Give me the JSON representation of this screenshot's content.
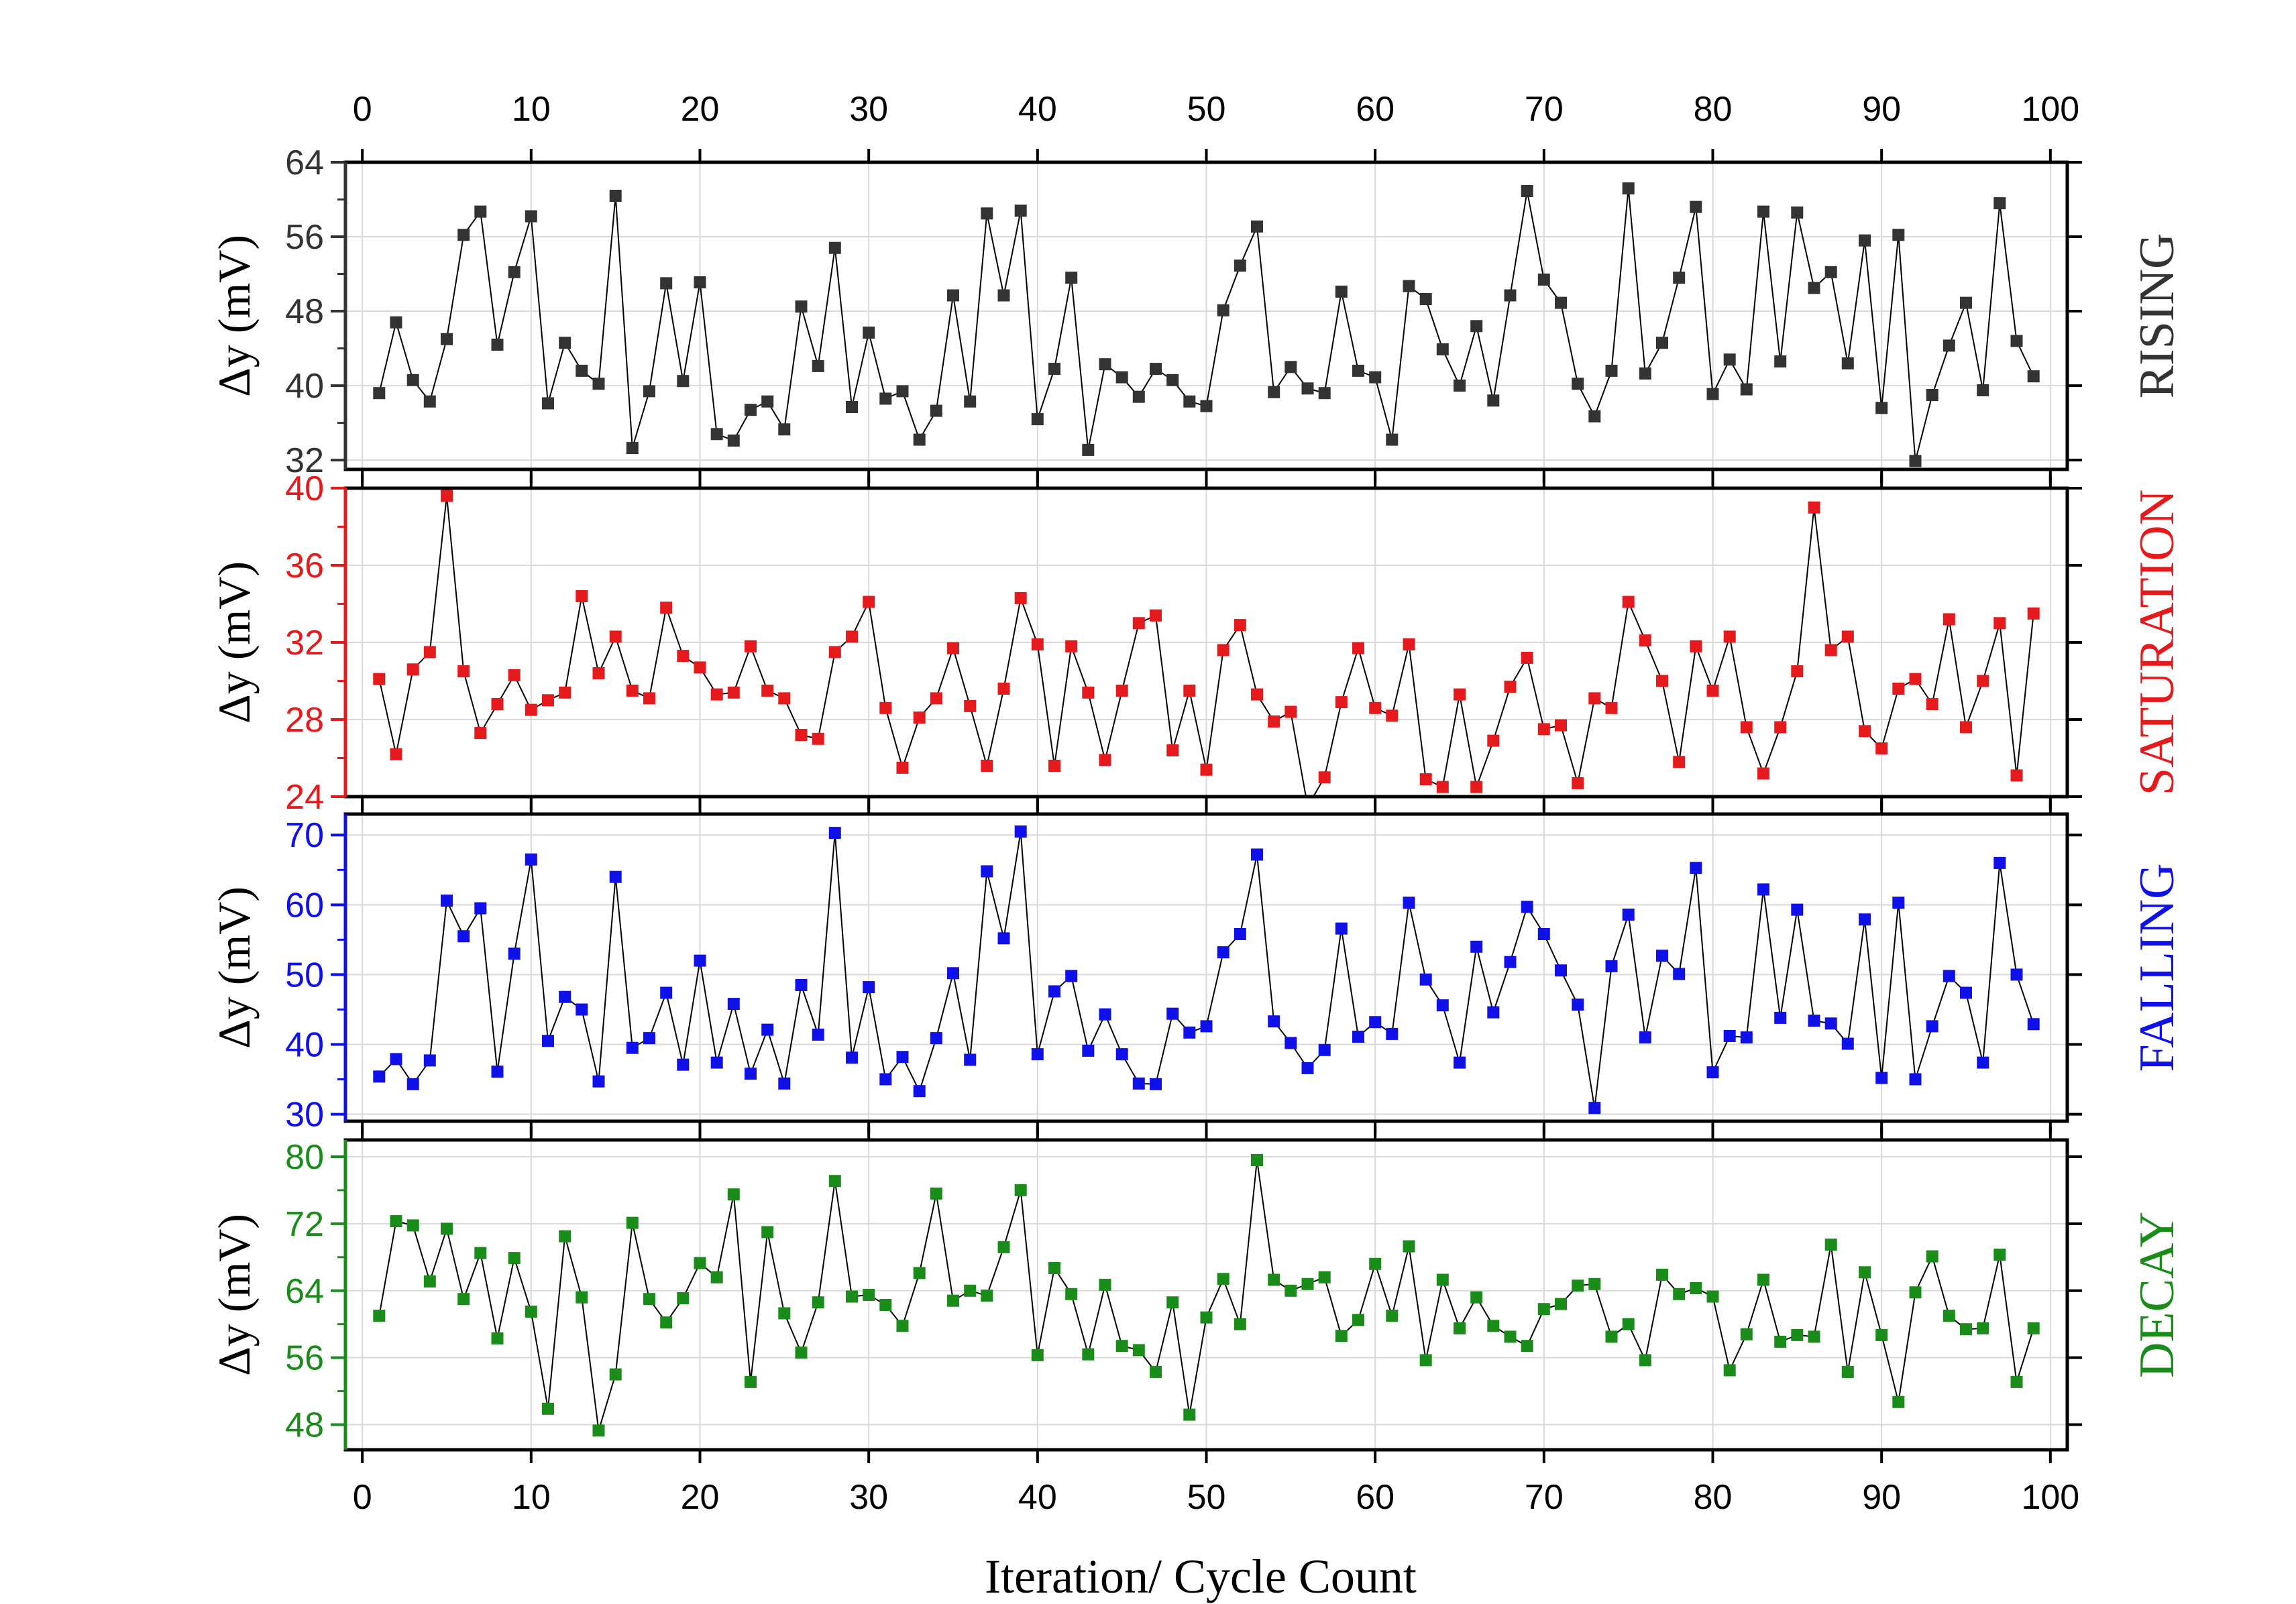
{
  "chart_data": {
    "type": "scatter",
    "xlabel": "Iteration/ Cycle Count",
    "x_ticks": [
      "0",
      "10",
      "20",
      "30",
      "40",
      "50",
      "60",
      "70",
      "80",
      "90",
      "100"
    ],
    "xlim": [
      -1,
      101
    ],
    "grid": true,
    "panels": [
      {
        "name": "RISING",
        "ylabel": "Δy (mV)",
        "color": "#333333",
        "ylim": [
          31,
          64
        ],
        "yticks": [
          32,
          40,
          48,
          56,
          64
        ],
        "y_tick_labels": [
          "32",
          "40",
          "48",
          "56",
          "64"
        ],
        "x": [
          1,
          2,
          3,
          4,
          5,
          6,
          7,
          8,
          9,
          10,
          11,
          12,
          13,
          14,
          15,
          16,
          17,
          18,
          19,
          20,
          21,
          22,
          23,
          24,
          25,
          26,
          27,
          28,
          29,
          30,
          31,
          32,
          33,
          34,
          35,
          36,
          37,
          38,
          39,
          40,
          41,
          42,
          43,
          44,
          45,
          46,
          47,
          48,
          49,
          50,
          51,
          52,
          53,
          54,
          55,
          56,
          57,
          58,
          59,
          60,
          61,
          62,
          63,
          64,
          65,
          66,
          67,
          68,
          69,
          70,
          71,
          72,
          73,
          74,
          75,
          76,
          77,
          78,
          79,
          80,
          81,
          82,
          83,
          84,
          85,
          86,
          87,
          88,
          89,
          90,
          91,
          92,
          93,
          94,
          95,
          96,
          97,
          98,
          99
        ],
        "values": [
          39.2,
          46.8,
          40.6,
          38.3,
          45.0,
          56.2,
          58.7,
          44.4,
          52.2,
          58.2,
          38.1,
          44.6,
          41.6,
          40.2,
          60.4,
          33.3,
          39.4,
          51.0,
          40.5,
          51.1,
          34.8,
          34.1,
          37.4,
          38.3,
          35.3,
          48.5,
          42.1,
          54.8,
          37.7,
          45.7,
          38.6,
          39.4,
          34.2,
          37.3,
          49.7,
          38.3,
          58.5,
          49.7,
          58.8,
          36.4,
          41.8,
          51.6,
          33.1,
          42.3,
          40.9,
          38.8,
          41.8,
          40.6,
          38.3,
          37.8,
          48.1,
          52.9,
          57.1,
          39.3,
          42.0,
          39.7,
          39.2,
          50.1,
          41.6,
          40.9,
          34.2,
          50.7,
          49.3,
          43.9,
          40.0,
          46.4,
          38.4,
          49.7,
          60.9,
          51.4,
          48.9,
          40.2,
          36.7,
          41.6,
          61.2,
          41.3,
          44.6,
          51.6,
          59.2,
          39.1,
          42.8,
          39.6,
          58.7,
          42.6,
          58.6,
          50.5,
          52.2,
          42.4,
          55.6,
          37.6,
          56.2,
          31.9,
          39.0,
          44.3,
          48.9,
          39.5,
          59.6,
          44.8,
          41.0
        ]
      },
      {
        "name": "SATURATION",
        "ylabel": "Δy (mV)",
        "color": "#e41a1c",
        "ylim": [
          24,
          40
        ],
        "yticks": [
          24,
          28,
          32,
          36,
          40
        ],
        "y_tick_labels": [
          "24",
          "28",
          "32",
          "36",
          "40"
        ],
        "x": [
          1,
          2,
          3,
          4,
          5,
          6,
          7,
          8,
          9,
          10,
          11,
          12,
          13,
          14,
          15,
          16,
          17,
          18,
          19,
          20,
          21,
          22,
          23,
          24,
          25,
          26,
          27,
          28,
          29,
          30,
          31,
          32,
          33,
          34,
          35,
          36,
          37,
          38,
          39,
          40,
          41,
          42,
          43,
          44,
          45,
          46,
          47,
          48,
          49,
          50,
          51,
          52,
          53,
          54,
          55,
          56,
          57,
          58,
          59,
          60,
          61,
          62,
          63,
          64,
          65,
          66,
          67,
          68,
          69,
          70,
          71,
          72,
          73,
          74,
          75,
          76,
          77,
          78,
          79,
          80,
          81,
          82,
          83,
          84,
          85,
          86,
          87,
          88,
          89,
          90,
          91,
          92,
          93,
          94,
          95,
          96,
          97,
          98,
          99
        ],
        "values": [
          30.1,
          26.2,
          30.6,
          31.5,
          39.6,
          30.5,
          27.3,
          28.8,
          30.3,
          28.5,
          29.0,
          29.4,
          34.4,
          30.4,
          32.3,
          29.5,
          29.1,
          33.8,
          31.3,
          30.7,
          29.3,
          29.4,
          31.8,
          29.5,
          29.1,
          27.2,
          27.0,
          31.5,
          32.3,
          34.1,
          28.6,
          25.5,
          28.1,
          29.1,
          31.7,
          28.7,
          25.6,
          29.6,
          34.3,
          31.9,
          25.6,
          31.8,
          29.4,
          25.9,
          29.5,
          33.0,
          33.4,
          26.4,
          29.5,
          25.4,
          31.6,
          32.9,
          29.3,
          27.9,
          28.4,
          23.5,
          25.0,
          28.9,
          31.7,
          28.6,
          28.2,
          31.9,
          24.9,
          24.5,
          29.3,
          24.5,
          26.9,
          29.7,
          31.2,
          27.5,
          27.7,
          24.7,
          29.1,
          28.6,
          34.1,
          32.1,
          30.0,
          25.8,
          31.8,
          29.5,
          32.3,
          27.6,
          25.2,
          27.6,
          30.5,
          39.0,
          31.6,
          32.3,
          27.4,
          26.5,
          29.6,
          30.1,
          28.8,
          33.2,
          27.6,
          30.0,
          33.0,
          25.1,
          33.5
        ]
      },
      {
        "name": "FALLING",
        "ylabel": "Δy (mV)",
        "color": "#1010e8",
        "ylim": [
          29,
          73
        ],
        "yticks": [
          30,
          40,
          50,
          60,
          70
        ],
        "y_tick_labels": [
          "30",
          "40",
          "50",
          "60",
          "70"
        ],
        "x": [
          1,
          2,
          3,
          4,
          5,
          6,
          7,
          8,
          9,
          10,
          11,
          12,
          13,
          14,
          15,
          16,
          17,
          18,
          19,
          20,
          21,
          22,
          23,
          24,
          25,
          26,
          27,
          28,
          29,
          30,
          31,
          32,
          33,
          34,
          35,
          36,
          37,
          38,
          39,
          40,
          41,
          42,
          43,
          44,
          45,
          46,
          47,
          48,
          49,
          50,
          51,
          52,
          53,
          54,
          55,
          56,
          57,
          58,
          59,
          60,
          61,
          62,
          63,
          64,
          65,
          66,
          67,
          68,
          69,
          70,
          71,
          72,
          73,
          74,
          75,
          76,
          77,
          78,
          79,
          80,
          81,
          82,
          83,
          84,
          85,
          86,
          87,
          88,
          89,
          90,
          91,
          92,
          93,
          94,
          95,
          96,
          97,
          98,
          99
        ],
        "values": [
          35.4,
          37.9,
          34.3,
          37.7,
          60.6,
          55.5,
          59.5,
          36.1,
          53.0,
          66.5,
          40.5,
          46.8,
          45.0,
          34.7,
          64.0,
          39.5,
          40.9,
          47.4,
          37.1,
          52.0,
          37.4,
          45.8,
          35.8,
          42.1,
          34.4,
          48.5,
          41.4,
          70.3,
          38.1,
          48.2,
          35.0,
          38.2,
          33.3,
          40.9,
          50.2,
          37.8,
          64.8,
          55.2,
          70.5,
          38.6,
          47.6,
          49.8,
          39.1,
          44.3,
          38.6,
          34.4,
          34.3,
          44.4,
          41.7,
          42.6,
          53.2,
          55.8,
          67.2,
          43.3,
          40.2,
          36.6,
          39.2,
          56.6,
          41.1,
          43.2,
          41.5,
          60.3,
          49.3,
          45.6,
          37.4,
          54.0,
          44.6,
          51.8,
          59.7,
          55.8,
          50.6,
          45.7,
          30.9,
          51.2,
          58.6,
          41.0,
          52.7,
          50.1,
          65.3,
          36.0,
          41.2,
          41.0,
          62.2,
          43.8,
          59.3,
          43.4,
          43.0,
          40.1,
          57.9,
          35.2,
          60.3,
          35.0,
          42.6,
          49.8,
          47.4,
          37.4,
          66.0,
          50.0,
          42.9
        ]
      },
      {
        "name": "DECAY",
        "ylabel": "Δy (mV)",
        "color": "#1a8c1a",
        "ylim": [
          45,
          82
        ],
        "yticks": [
          48,
          56,
          64,
          72,
          80
        ],
        "y_tick_labels": [
          "48",
          "56",
          "64",
          "72",
          "80"
        ],
        "x": [
          1,
          2,
          3,
          4,
          5,
          6,
          7,
          8,
          9,
          10,
          11,
          12,
          13,
          14,
          15,
          16,
          17,
          18,
          19,
          20,
          21,
          22,
          23,
          24,
          25,
          26,
          27,
          28,
          29,
          30,
          31,
          32,
          33,
          34,
          35,
          36,
          37,
          38,
          39,
          40,
          41,
          42,
          43,
          44,
          45,
          46,
          47,
          48,
          49,
          50,
          51,
          52,
          53,
          54,
          55,
          56,
          57,
          58,
          59,
          60,
          61,
          62,
          63,
          64,
          65,
          66,
          67,
          68,
          69,
          70,
          71,
          72,
          73,
          74,
          75,
          76,
          77,
          78,
          79,
          80,
          81,
          82,
          83,
          84,
          85,
          86,
          87,
          88,
          89,
          90,
          91,
          92,
          93,
          94,
          95,
          96,
          97,
          98,
          99
        ],
        "values": [
          61.0,
          72.3,
          71.8,
          65.1,
          71.4,
          63.0,
          68.5,
          58.3,
          67.9,
          61.5,
          49.9,
          70.5,
          63.2,
          47.3,
          54.0,
          72.1,
          63.0,
          60.2,
          63.1,
          67.3,
          65.6,
          75.5,
          53.1,
          71.0,
          61.3,
          56.6,
          62.6,
          77.1,
          63.3,
          63.5,
          62.3,
          59.8,
          66.1,
          75.6,
          62.8,
          64.0,
          63.4,
          69.2,
          76.0,
          56.3,
          66.7,
          63.6,
          56.4,
          64.7,
          57.4,
          56.9,
          54.3,
          62.6,
          49.2,
          60.8,
          65.4,
          60.0,
          79.6,
          65.3,
          64.0,
          64.8,
          65.6,
          58.6,
          60.5,
          67.2,
          61.0,
          69.3,
          55.7,
          65.3,
          59.5,
          63.2,
          59.8,
          58.5,
          57.4,
          61.8,
          62.4,
          64.6,
          64.8,
          58.5,
          60.0,
          55.7,
          65.9,
          63.6,
          64.3,
          63.3,
          54.5,
          58.8,
          65.3,
          57.9,
          58.7,
          58.5,
          69.5,
          54.3,
          66.2,
          58.7,
          50.7,
          63.8,
          68.1,
          61.0,
          59.4,
          59.5,
          68.3,
          53.1,
          59.5
        ]
      }
    ]
  }
}
